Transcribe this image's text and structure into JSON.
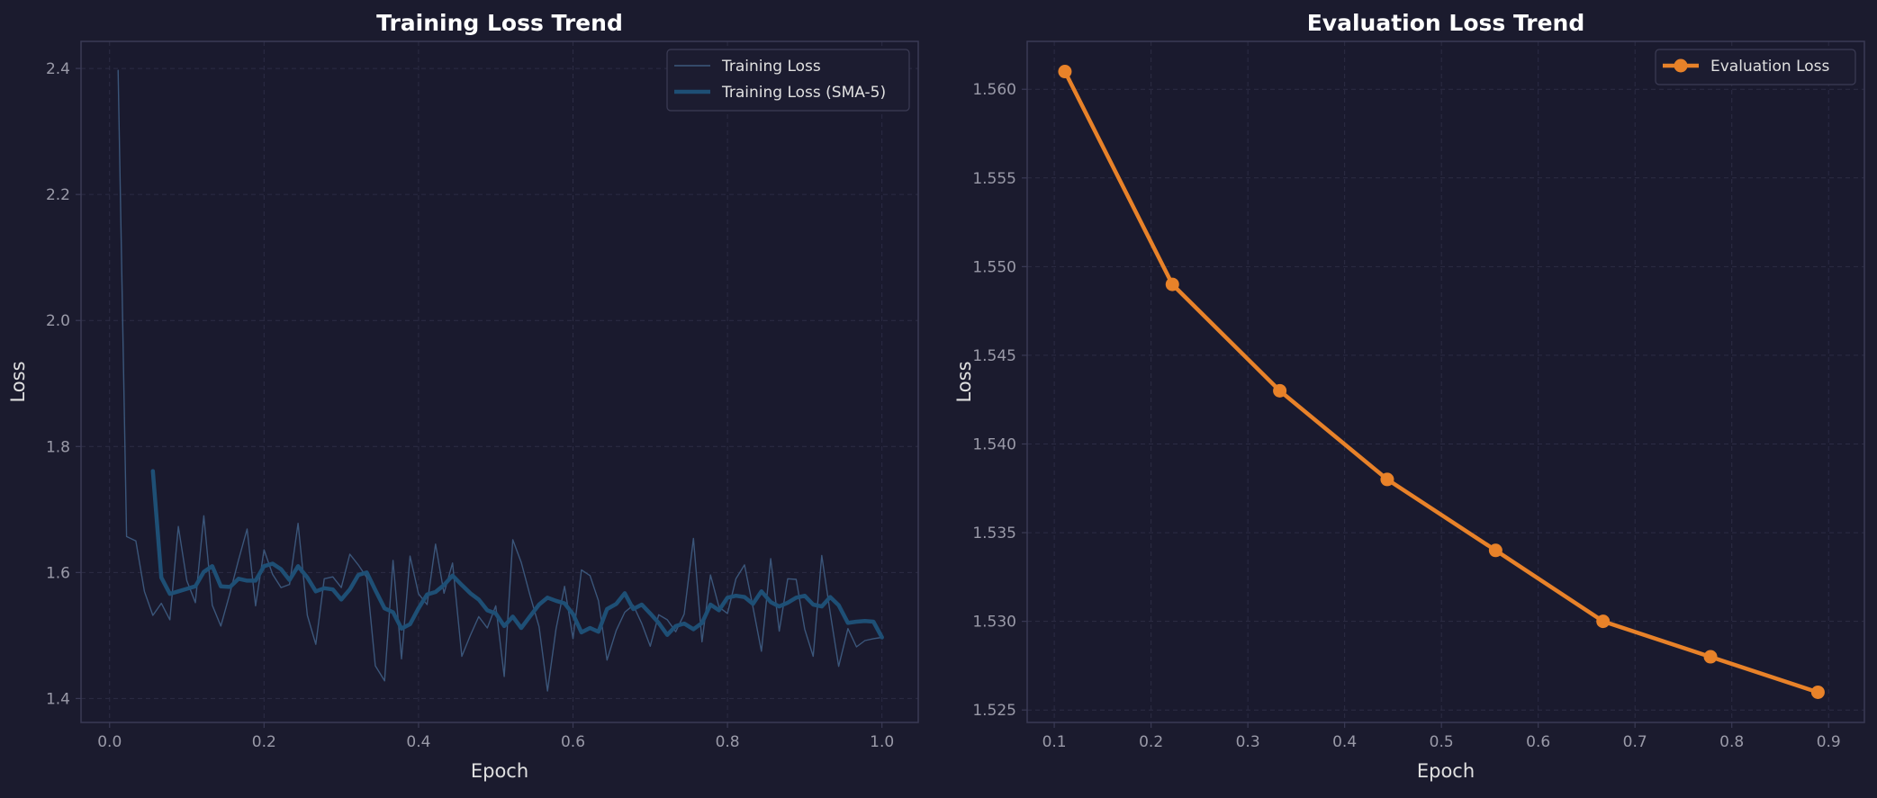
{
  "colors": {
    "background": "#1b1b2e",
    "plot_background": "#1a1a2e",
    "grid": "#2c2c44",
    "spine": "#3a3a55",
    "text": "#e0e0e0",
    "tick_text": "#9a9aa8",
    "train_raw": "#3d5a7e",
    "train_sma": "#1e4f75",
    "eval": "#e88229"
  },
  "chart_data": [
    {
      "type": "line",
      "title": "Training Loss Trend",
      "xlabel": "Epoch",
      "ylabel": "Loss",
      "xlim": [
        -0.037,
        1.047
      ],
      "ylim": [
        1.362,
        2.443
      ],
      "xticks": [
        0.0,
        0.2,
        0.4,
        0.6,
        0.8,
        1.0
      ],
      "xtick_labels": [
        "0.0",
        "0.2",
        "0.4",
        "0.6",
        "0.8",
        "1.0"
      ],
      "yticks": [
        1.4,
        1.6,
        1.8,
        2.0,
        2.2,
        2.4
      ],
      "ytick_labels": [
        "1.4",
        "1.6",
        "1.8",
        "2.0",
        "2.2",
        "2.4"
      ],
      "grid": true,
      "legend": "top-right",
      "series": [
        {
          "name": "Training Loss",
          "x": [
            0.011,
            0.022,
            0.034,
            0.045,
            0.056,
            0.067,
            0.078,
            0.089,
            0.1,
            0.111,
            0.122,
            0.133,
            0.144,
            0.156,
            0.167,
            0.178,
            0.189,
            0.2,
            0.211,
            0.222,
            0.233,
            0.244,
            0.256,
            0.267,
            0.278,
            0.289,
            0.3,
            0.311,
            0.322,
            0.333,
            0.344,
            0.356,
            0.367,
            0.378,
            0.389,
            0.4,
            0.411,
            0.422,
            0.433,
            0.444,
            0.456,
            0.467,
            0.478,
            0.489,
            0.5,
            0.511,
            0.522,
            0.533,
            0.544,
            0.556,
            0.567,
            0.578,
            0.589,
            0.6,
            0.611,
            0.622,
            0.633,
            0.644,
            0.656,
            0.667,
            0.678,
            0.689,
            0.7,
            0.711,
            0.722,
            0.733,
            0.744,
            0.756,
            0.767,
            0.778,
            0.789,
            0.8,
            0.811,
            0.822,
            0.833,
            0.844,
            0.856,
            0.867,
            0.878,
            0.889,
            0.9,
            0.911,
            0.922,
            0.933,
            0.944,
            0.956,
            0.967,
            0.978,
            0.989,
            1.0
          ],
          "values": [
            2.397,
            1.657,
            1.65,
            1.57,
            1.532,
            1.551,
            1.525,
            1.673,
            1.587,
            1.552,
            1.69,
            1.548,
            1.515,
            1.568,
            1.62,
            1.669,
            1.547,
            1.636,
            1.597,
            1.576,
            1.581,
            1.678,
            1.532,
            1.486,
            1.59,
            1.593,
            1.576,
            1.629,
            1.612,
            1.592,
            1.452,
            1.428,
            1.619,
            1.463,
            1.626,
            1.566,
            1.549,
            1.645,
            1.567,
            1.615,
            1.467,
            1.5,
            1.53,
            1.512,
            1.547,
            1.435,
            1.652,
            1.616,
            1.565,
            1.514,
            1.412,
            1.51,
            1.578,
            1.495,
            1.604,
            1.595,
            1.555,
            1.461,
            1.508,
            1.537,
            1.548,
            1.519,
            1.483,
            1.533,
            1.525,
            1.506,
            1.534,
            1.654,
            1.49,
            1.596,
            1.545,
            1.535,
            1.59,
            1.612,
            1.545,
            1.475,
            1.622,
            1.507,
            1.59,
            1.589,
            1.51,
            1.467,
            1.627,
            1.536,
            1.451,
            1.511,
            1.482,
            1.492,
            1.495,
            1.497
          ]
        },
        {
          "name": "Training Loss (SMA-5)",
          "x": [
            0.056,
            0.067,
            0.078,
            0.089,
            0.1,
            0.111,
            0.122,
            0.133,
            0.144,
            0.156,
            0.167,
            0.178,
            0.189,
            0.2,
            0.211,
            0.222,
            0.233,
            0.244,
            0.256,
            0.267,
            0.278,
            0.289,
            0.3,
            0.311,
            0.322,
            0.333,
            0.344,
            0.356,
            0.367,
            0.378,
            0.389,
            0.4,
            0.411,
            0.422,
            0.433,
            0.444,
            0.456,
            0.467,
            0.478,
            0.489,
            0.5,
            0.511,
            0.522,
            0.533,
            0.544,
            0.556,
            0.567,
            0.578,
            0.589,
            0.6,
            0.611,
            0.622,
            0.633,
            0.644,
            0.656,
            0.667,
            0.678,
            0.689,
            0.7,
            0.711,
            0.722,
            0.733,
            0.744,
            0.756,
            0.767,
            0.778,
            0.789,
            0.8,
            0.811,
            0.822,
            0.833,
            0.844,
            0.856,
            0.867,
            0.878,
            0.889,
            0.9,
            0.911,
            0.922,
            0.933,
            0.944,
            0.956,
            0.967,
            0.978,
            0.989,
            1.0
          ],
          "values": [
            1.761,
            1.592,
            1.566,
            1.57,
            1.574,
            1.578,
            1.601,
            1.61,
            1.578,
            1.577,
            1.59,
            1.587,
            1.587,
            1.61,
            1.614,
            1.605,
            1.588,
            1.61,
            1.592,
            1.57,
            1.575,
            1.573,
            1.557,
            1.573,
            1.596,
            1.6,
            1.572,
            1.543,
            1.537,
            1.511,
            1.518,
            1.543,
            1.565,
            1.569,
            1.58,
            1.595,
            1.58,
            1.567,
            1.557,
            1.54,
            1.535,
            1.515,
            1.53,
            1.512,
            1.53,
            1.549,
            1.56,
            1.555,
            1.551,
            1.534,
            1.505,
            1.512,
            1.506,
            1.542,
            1.55,
            1.567,
            1.542,
            1.549,
            1.535,
            1.52,
            1.501,
            1.515,
            1.519,
            1.51,
            1.52,
            1.549,
            1.54,
            1.56,
            1.563,
            1.561,
            1.55,
            1.57,
            1.553,
            1.546,
            1.552,
            1.56,
            1.563,
            1.549,
            1.546,
            1.561,
            1.548,
            1.52,
            1.522,
            1.523,
            1.522,
            1.497
          ]
        }
      ]
    },
    {
      "type": "line",
      "title": "Evaluation Loss Trend",
      "xlabel": "Epoch",
      "ylabel": "Loss",
      "xlim": [
        0.072,
        0.937
      ],
      "ylim": [
        1.5243,
        1.5627
      ],
      "xticks": [
        0.1,
        0.2,
        0.3,
        0.4,
        0.5,
        0.6,
        0.7,
        0.8,
        0.9
      ],
      "xtick_labels": [
        "0.1",
        "0.2",
        "0.3",
        "0.4",
        "0.5",
        "0.6",
        "0.7",
        "0.8",
        "0.9"
      ],
      "yticks": [
        1.525,
        1.53,
        1.535,
        1.54,
        1.545,
        1.55,
        1.555,
        1.56
      ],
      "ytick_labels": [
        "1.525",
        "1.530",
        "1.535",
        "1.540",
        "1.545",
        "1.550",
        "1.555",
        "1.560"
      ],
      "grid": true,
      "legend": "top-right",
      "series": [
        {
          "name": "Evaluation Loss",
          "x": [
            0.111,
            0.222,
            0.333,
            0.444,
            0.556,
            0.667,
            0.778,
            0.889
          ],
          "values": [
            1.561,
            1.549,
            1.543,
            1.538,
            1.534,
            1.53,
            1.528,
            1.526
          ]
        }
      ]
    }
  ]
}
